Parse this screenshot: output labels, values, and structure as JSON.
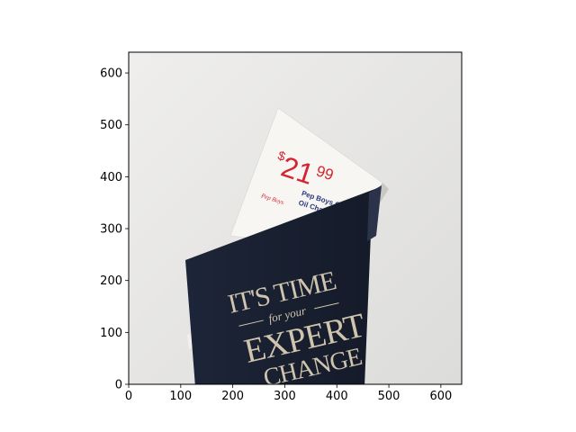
{
  "axes": {
    "x_ticks": [
      0,
      100,
      200,
      300,
      400,
      500,
      600
    ],
    "y_ticks": [
      0,
      100,
      200,
      300,
      400,
      500,
      600
    ],
    "x_range": [
      0,
      640
    ],
    "y_range": [
      640,
      0
    ],
    "y_inverted": true,
    "frame_color": "#000000"
  },
  "photo": {
    "background_color": "#e9e9e7",
    "coupon": {
      "price_dollar": "$",
      "price_main": "21",
      "price_cents": "99",
      "brand": "Pep Boys",
      "line1": "Pep Boys Conve",
      "line2": "Oil Change S",
      "price_color": "#d22630",
      "text_color": "#2b3a7a"
    },
    "booklet": {
      "line1": "IT'S TIME",
      "line2": "for your",
      "line3": "EXPERT",
      "line4": "CHANGE",
      "cover_color": "#1b2233",
      "text_color": "#cfc4ad"
    }
  }
}
